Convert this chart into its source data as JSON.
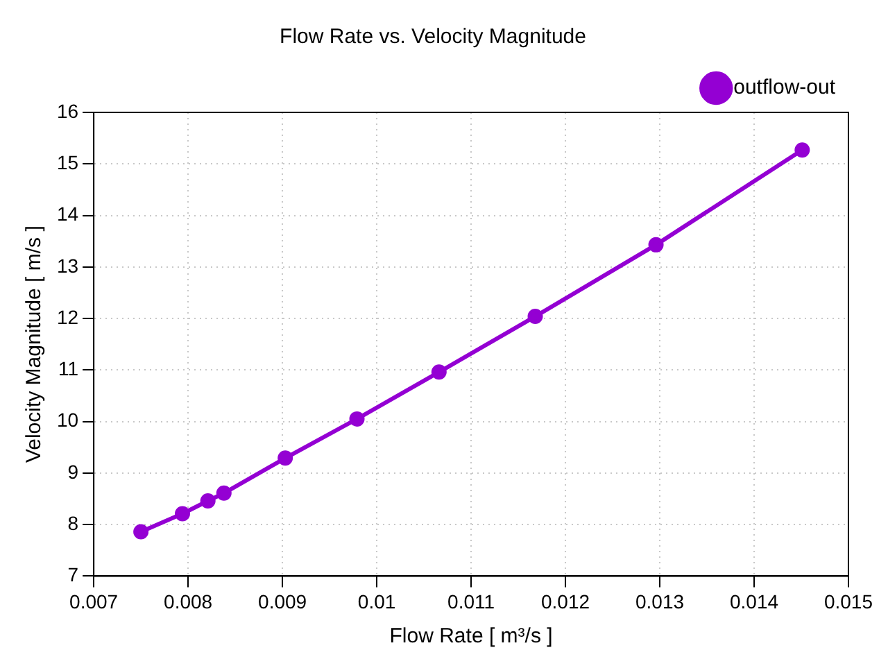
{
  "chart_data": {
    "type": "line",
    "title": "Flow Rate vs. Velocity Magnitude",
    "xlabel": "Flow Rate [ m³/s ]",
    "ylabel": "Velocity Magnitude [ m/s ]",
    "x": [
      0.0075,
      0.00794,
      0.00821,
      0.00838,
      0.00903,
      0.00979,
      0.01066,
      0.01168,
      0.01296,
      0.01451
    ],
    "series": [
      {
        "name": "outflow-out",
        "color": "#9400d3",
        "values": [
          7.86,
          8.21,
          8.46,
          8.61,
          9.29,
          10.05,
          10.96,
          12.04,
          13.43,
          15.27
        ]
      }
    ],
    "xlim": [
      0.007,
      0.015
    ],
    "xticks": [
      0.007,
      0.008,
      0.009,
      0.01,
      0.011,
      0.012,
      0.013,
      0.014,
      0.015
    ],
    "ylim": [
      7,
      16
    ],
    "yticks": [
      7,
      8,
      9,
      10,
      11,
      12,
      13,
      14,
      15,
      16
    ],
    "grid": true,
    "legend": "top right",
    "marker": "circle",
    "line_style": "solid"
  }
}
